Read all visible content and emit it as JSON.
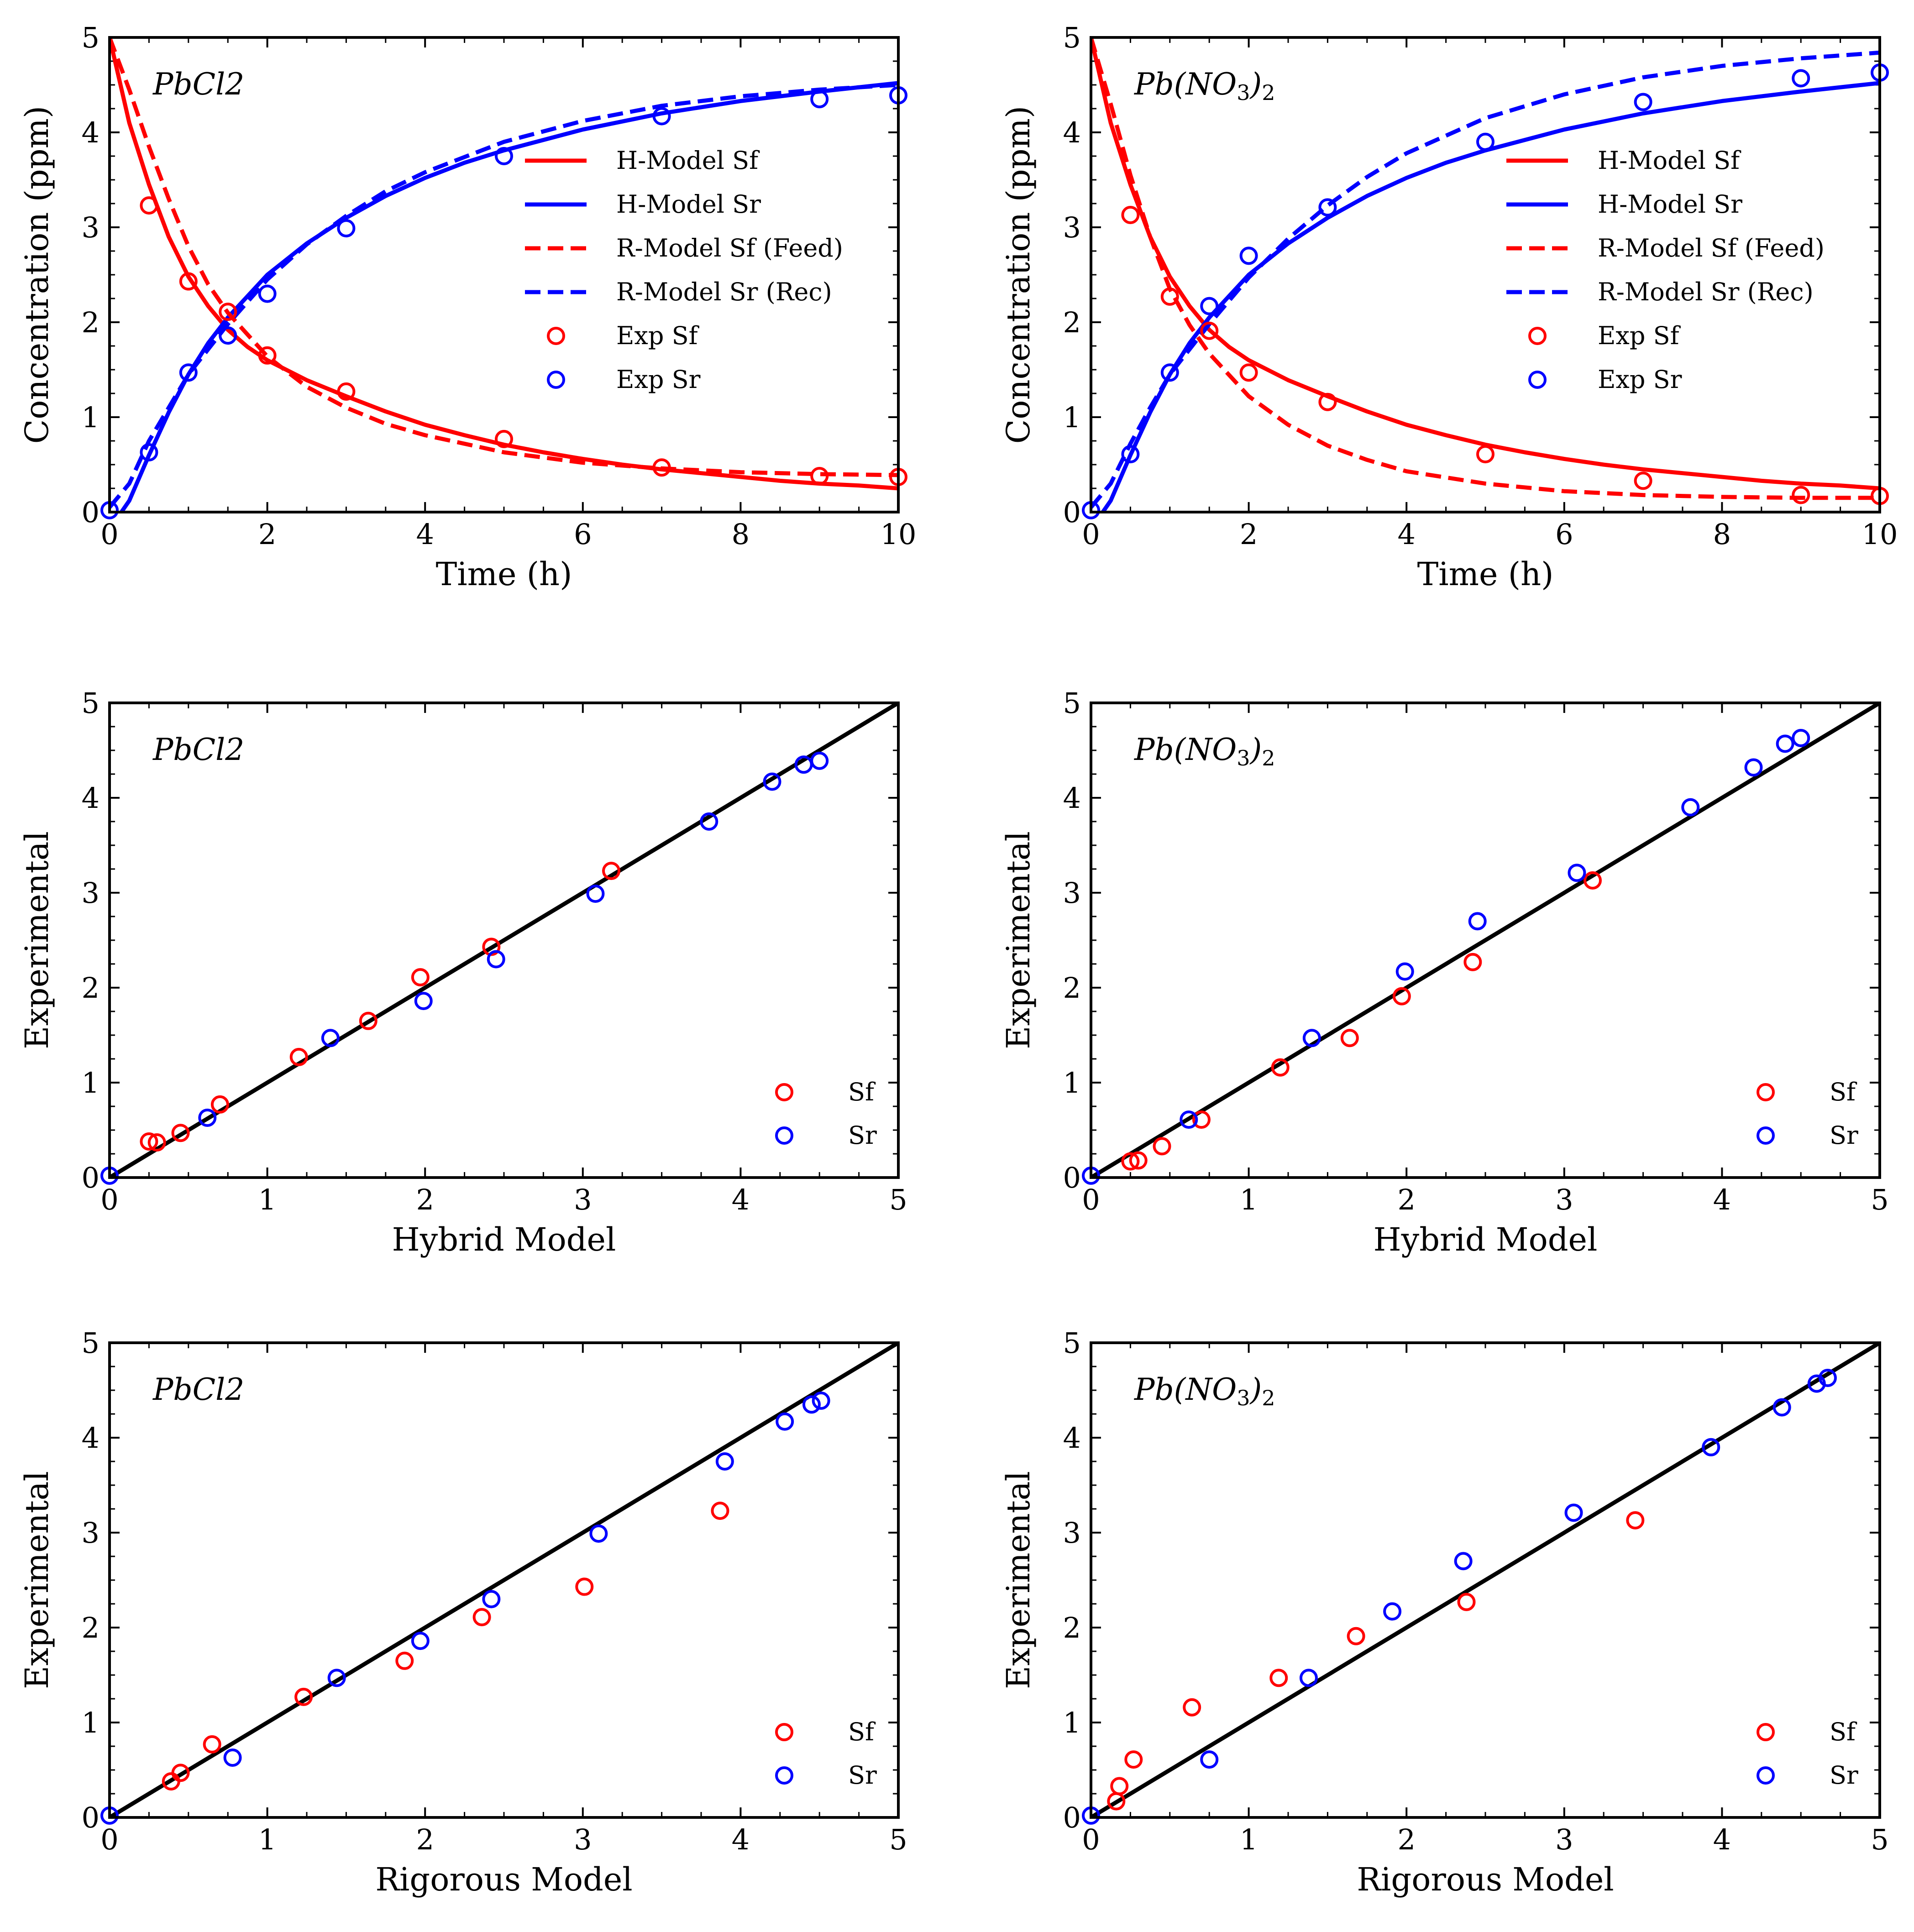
{
  "figure": {
    "layout": "3 rows x 2 columns of panels"
  },
  "chart_data": [
    {
      "id": "pbcl2_time",
      "type": "line",
      "title": "PbCl2",
      "xlabel": "Time (h)",
      "ylabel": "Concentration (ppm)",
      "xlim": [
        0,
        10
      ],
      "ylim": [
        0,
        5
      ],
      "xticks": [
        "0",
        "2",
        "4",
        "6",
        "8",
        "10"
      ],
      "yticks": [
        "0",
        "1",
        "2",
        "3",
        "4",
        "5"
      ],
      "legend_position": "center-right",
      "series": [
        {
          "name": "H-Model Sf",
          "kind": "line",
          "style": "solid",
          "color": "#ff0000",
          "x": [
            0,
            0.25,
            0.5,
            0.75,
            1,
            1.25,
            1.5,
            1.75,
            2,
            2.5,
            3,
            3.5,
            4,
            4.5,
            5,
            5.5,
            6,
            6.5,
            7,
            7.5,
            8,
            8.5,
            9,
            9.5,
            10
          ],
          "y": [
            5.0,
            4.1,
            3.45,
            2.9,
            2.48,
            2.17,
            1.92,
            1.74,
            1.6,
            1.39,
            1.22,
            1.06,
            0.92,
            0.81,
            0.71,
            0.63,
            0.56,
            0.5,
            0.45,
            0.41,
            0.37,
            0.33,
            0.3,
            0.28,
            0.25
          ]
        },
        {
          "name": "H-Model Sr",
          "kind": "line",
          "style": "solid",
          "color": "#0000ff",
          "x": [
            0.15,
            0.25,
            0.5,
            0.75,
            1,
            1.25,
            1.5,
            2,
            2.5,
            3,
            3.5,
            4,
            4.5,
            5,
            6,
            7,
            8,
            9,
            10
          ],
          "y": [
            0.0,
            0.12,
            0.6,
            1.05,
            1.45,
            1.78,
            2.05,
            2.5,
            2.83,
            3.1,
            3.33,
            3.52,
            3.68,
            3.81,
            4.03,
            4.2,
            4.33,
            4.43,
            4.52
          ]
        },
        {
          "name": "R-Model Sf (Feed)",
          "kind": "line",
          "style": "dashed",
          "color": "#ff0000",
          "x": [
            0,
            0.25,
            0.5,
            0.75,
            1,
            1.25,
            1.5,
            2,
            2.5,
            3,
            3.5,
            4,
            5,
            6,
            7,
            8,
            9,
            10
          ],
          "y": [
            5.0,
            4.45,
            3.85,
            3.3,
            2.8,
            2.4,
            2.1,
            1.64,
            1.32,
            1.1,
            0.93,
            0.81,
            0.63,
            0.52,
            0.46,
            0.42,
            0.4,
            0.39
          ]
        },
        {
          "name": "R-Model Sr (Rec)",
          "kind": "line",
          "style": "dashed",
          "color": "#0000ff",
          "x": [
            0,
            0.25,
            0.5,
            0.75,
            1,
            1.5,
            2,
            2.5,
            3,
            3.5,
            4,
            5,
            6,
            7,
            8,
            9,
            10
          ],
          "y": [
            0.05,
            0.3,
            0.75,
            1.1,
            1.45,
            1.98,
            2.45,
            2.82,
            3.12,
            3.38,
            3.58,
            3.9,
            4.12,
            4.28,
            4.38,
            4.45,
            4.5
          ]
        },
        {
          "name": "Exp Sf",
          "kind": "scatter",
          "color": "#ff0000",
          "x": [
            0.5,
            1,
            1.5,
            2,
            3,
            5,
            7,
            9,
            10
          ],
          "y": [
            3.23,
            2.43,
            2.11,
            1.65,
            1.27,
            0.77,
            0.47,
            0.38,
            0.37
          ]
        },
        {
          "name": "Exp Sr",
          "kind": "scatter",
          "color": "#0000ff",
          "x": [
            0,
            0.5,
            1,
            1.5,
            2,
            3,
            5,
            7,
            9,
            10
          ],
          "y": [
            0.02,
            0.63,
            1.47,
            1.86,
            2.3,
            2.99,
            3.75,
            4.17,
            4.35,
            4.39
          ]
        }
      ]
    },
    {
      "id": "pbno3_time",
      "type": "line",
      "title": "Pb(NO3)2",
      "xlabel": "Time (h)",
      "ylabel": "Concentration (ppm)",
      "xlim": [
        0,
        10
      ],
      "ylim": [
        0,
        5
      ],
      "xticks": [
        "0",
        "2",
        "4",
        "6",
        "8",
        "10"
      ],
      "yticks": [
        "0",
        "1",
        "2",
        "3",
        "4",
        "5"
      ],
      "legend_position": "center-right",
      "series": [
        {
          "name": "H-Model Sf",
          "kind": "line",
          "style": "solid",
          "color": "#ff0000",
          "x": [
            0,
            0.25,
            0.5,
            0.75,
            1,
            1.25,
            1.5,
            1.75,
            2,
            2.5,
            3,
            3.5,
            4,
            4.5,
            5,
            5.5,
            6,
            6.5,
            7,
            7.5,
            8,
            8.5,
            9,
            9.5,
            10
          ],
          "y": [
            5.0,
            4.1,
            3.45,
            2.9,
            2.48,
            2.17,
            1.92,
            1.74,
            1.6,
            1.39,
            1.22,
            1.06,
            0.92,
            0.81,
            0.71,
            0.63,
            0.56,
            0.5,
            0.45,
            0.41,
            0.37,
            0.33,
            0.3,
            0.28,
            0.25
          ]
        },
        {
          "name": "H-Model Sr",
          "kind": "line",
          "style": "solid",
          "color": "#0000ff",
          "x": [
            0.15,
            0.25,
            0.5,
            0.75,
            1,
            1.25,
            1.5,
            2,
            2.5,
            3,
            3.5,
            4,
            4.5,
            5,
            6,
            7,
            8,
            9,
            10
          ],
          "y": [
            0.0,
            0.12,
            0.6,
            1.05,
            1.45,
            1.78,
            2.05,
            2.5,
            2.83,
            3.1,
            3.33,
            3.52,
            3.68,
            3.81,
            4.03,
            4.2,
            4.33,
            4.43,
            4.52
          ]
        },
        {
          "name": "R-Model Sf (Feed)",
          "kind": "line",
          "style": "dashed",
          "color": "#ff0000",
          "x": [
            0,
            0.25,
            0.5,
            0.75,
            1,
            1.25,
            1.5,
            2,
            2.5,
            3,
            3.5,
            4,
            5,
            6,
            7,
            8,
            9,
            10
          ],
          "y": [
            5.0,
            4.3,
            3.55,
            2.9,
            2.35,
            1.97,
            1.67,
            1.22,
            0.92,
            0.7,
            0.55,
            0.43,
            0.3,
            0.22,
            0.18,
            0.16,
            0.15,
            0.15
          ]
        },
        {
          "name": "R-Model Sr (Rec)",
          "kind": "line",
          "style": "dashed",
          "color": "#0000ff",
          "x": [
            0,
            0.25,
            0.5,
            0.75,
            1,
            1.5,
            2,
            2.5,
            3,
            3.5,
            4,
            5,
            6,
            7,
            8,
            9,
            10
          ],
          "y": [
            0.05,
            0.3,
            0.72,
            1.1,
            1.45,
            1.98,
            2.47,
            2.88,
            3.23,
            3.53,
            3.78,
            4.15,
            4.4,
            4.58,
            4.7,
            4.78,
            4.84
          ]
        },
        {
          "name": "Exp Sf",
          "kind": "scatter",
          "color": "#ff0000",
          "x": [
            0.5,
            1,
            1.5,
            2,
            3,
            5,
            7,
            9,
            10
          ],
          "y": [
            3.13,
            2.27,
            1.91,
            1.47,
            1.16,
            0.61,
            0.33,
            0.18,
            0.17
          ]
        },
        {
          "name": "Exp Sr",
          "kind": "scatter",
          "color": "#0000ff",
          "x": [
            0,
            0.5,
            1,
            1.5,
            2,
            3,
            5,
            7,
            9,
            10
          ],
          "y": [
            0.02,
            0.61,
            1.47,
            2.17,
            2.7,
            3.21,
            3.9,
            4.32,
            4.57,
            4.63
          ]
        }
      ]
    },
    {
      "id": "pbcl2_hybrid",
      "type": "scatter",
      "title": "PbCl2",
      "xlabel": "Hybrid Model",
      "ylabel": "Experimental",
      "xlim": [
        0,
        5
      ],
      "ylim": [
        0,
        5
      ],
      "xticks": [
        "0",
        "1",
        "2",
        "3",
        "4",
        "5"
      ],
      "yticks": [
        "0",
        "1",
        "2",
        "3",
        "4",
        "5"
      ],
      "legend_position": "lower-right",
      "diagonal": [
        [
          0,
          0
        ],
        [
          5,
          5
        ]
      ],
      "series": [
        {
          "name": "Sf",
          "kind": "scatter",
          "color": "#ff0000",
          "x": [
            0.25,
            0.3,
            0.45,
            0.7,
            1.2,
            1.64,
            1.97,
            2.42,
            3.18
          ],
          "y": [
            0.38,
            0.37,
            0.47,
            0.77,
            1.27,
            1.65,
            2.11,
            2.43,
            3.23
          ]
        },
        {
          "name": "Sr",
          "kind": "scatter",
          "color": "#0000ff",
          "x": [
            0.0,
            0.62,
            1.4,
            1.99,
            2.45,
            3.08,
            3.8,
            4.2,
            4.4,
            4.5
          ],
          "y": [
            0.02,
            0.63,
            1.47,
            1.86,
            2.3,
            2.99,
            3.75,
            4.17,
            4.35,
            4.39
          ]
        }
      ]
    },
    {
      "id": "pbno3_hybrid",
      "type": "scatter",
      "title": "Pb(NO3)2",
      "xlabel": "Hybrid Model",
      "ylabel": "Experimental",
      "xlim": [
        0,
        5
      ],
      "ylim": [
        0,
        5
      ],
      "xticks": [
        "0",
        "1",
        "2",
        "3",
        "4",
        "5"
      ],
      "yticks": [
        "0",
        "1",
        "2",
        "3",
        "4",
        "5"
      ],
      "legend_position": "lower-right",
      "diagonal": [
        [
          0,
          0
        ],
        [
          5,
          5
        ]
      ],
      "series": [
        {
          "name": "Sf",
          "kind": "scatter",
          "color": "#ff0000",
          "x": [
            0.25,
            0.3,
            0.45,
            0.7,
            1.2,
            1.64,
            1.97,
            2.42,
            3.18
          ],
          "y": [
            0.17,
            0.18,
            0.33,
            0.61,
            1.16,
            1.47,
            1.91,
            2.27,
            3.13
          ]
        },
        {
          "name": "Sr",
          "kind": "scatter",
          "color": "#0000ff",
          "x": [
            0.0,
            0.62,
            1.4,
            1.99,
            2.45,
            3.08,
            3.8,
            4.2,
            4.4,
            4.5
          ],
          "y": [
            0.02,
            0.61,
            1.47,
            2.17,
            2.7,
            3.21,
            3.9,
            4.32,
            4.57,
            4.63
          ]
        }
      ]
    },
    {
      "id": "pbcl2_rigorous",
      "type": "scatter",
      "title": "PbCl2",
      "xlabel": "Rigorous Model",
      "ylabel": "Experimental",
      "xlim": [
        0,
        5
      ],
      "ylim": [
        0,
        5
      ],
      "xticks": [
        "0",
        "1",
        "2",
        "3",
        "4",
        "5"
      ],
      "yticks": [
        "0",
        "1",
        "2",
        "3",
        "4",
        "5"
      ],
      "legend_position": "lower-right",
      "diagonal": [
        [
          0,
          0
        ],
        [
          5,
          5
        ]
      ],
      "series": [
        {
          "name": "Sf",
          "kind": "scatter",
          "color": "#ff0000",
          "x": [
            0.39,
            0.45,
            0.65,
            1.23,
            1.87,
            2.36,
            3.01,
            3.87
          ],
          "y": [
            0.38,
            0.47,
            0.77,
            1.27,
            1.65,
            2.11,
            2.43,
            3.23
          ]
        },
        {
          "name": "Sr",
          "kind": "scatter",
          "color": "#0000ff",
          "x": [
            0.0,
            0.78,
            1.44,
            1.97,
            2.42,
            3.1,
            3.9,
            4.28,
            4.45,
            4.51
          ],
          "y": [
            0.02,
            0.63,
            1.47,
            1.86,
            2.3,
            2.99,
            3.75,
            4.17,
            4.35,
            4.39
          ]
        }
      ]
    },
    {
      "id": "pbno3_rigorous",
      "type": "scatter",
      "title": "Pb(NO3)2",
      "xlabel": "Rigorous Model",
      "ylabel": "Experimental",
      "xlim": [
        0,
        5
      ],
      "ylim": [
        0,
        5
      ],
      "xticks": [
        "0",
        "1",
        "2",
        "3",
        "4",
        "5"
      ],
      "yticks": [
        "0",
        "1",
        "2",
        "3",
        "4",
        "5"
      ],
      "legend_position": "lower-right",
      "diagonal": [
        [
          0,
          0
        ],
        [
          5,
          5
        ]
      ],
      "series": [
        {
          "name": "Sf",
          "kind": "scatter",
          "color": "#ff0000",
          "x": [
            0.16,
            0.18,
            0.27,
            0.64,
            1.19,
            1.68,
            2.38,
            3.45
          ],
          "y": [
            0.17,
            0.33,
            0.61,
            1.16,
            1.47,
            1.91,
            2.27,
            3.13
          ]
        },
        {
          "name": "Sr",
          "kind": "scatter",
          "color": "#0000ff",
          "x": [
            0.0,
            0.75,
            1.38,
            1.91,
            2.36,
            3.06,
            3.93,
            4.38,
            4.6,
            4.67
          ],
          "y": [
            0.02,
            0.61,
            1.47,
            2.17,
            2.7,
            3.21,
            3.9,
            4.32,
            4.57,
            4.63
          ]
        }
      ]
    }
  ]
}
